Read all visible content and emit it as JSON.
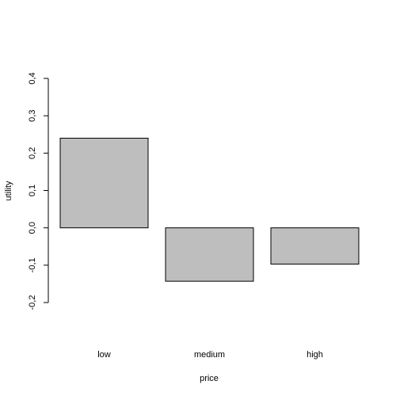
{
  "chart_data": {
    "type": "bar",
    "title": "",
    "xlabel": "price",
    "ylabel": "utility",
    "categories": [
      "low",
      "medium",
      "high"
    ],
    "values": [
      0.24,
      -0.143,
      -0.097
    ],
    "ylim": [
      -0.2,
      0.4
    ],
    "yticks": [
      -0.2,
      -0.1,
      0.0,
      0.1,
      0.2,
      0.3,
      0.4
    ],
    "ytick_labels": [
      "-0,2",
      "-0,1",
      "0,0",
      "0,1",
      "0,2",
      "0,3",
      "0,4"
    ],
    "grid": false,
    "legend": "none",
    "colors": {
      "bar_fill": "#bebebe",
      "bar_stroke": "#000000",
      "axis": "#000000"
    }
  }
}
